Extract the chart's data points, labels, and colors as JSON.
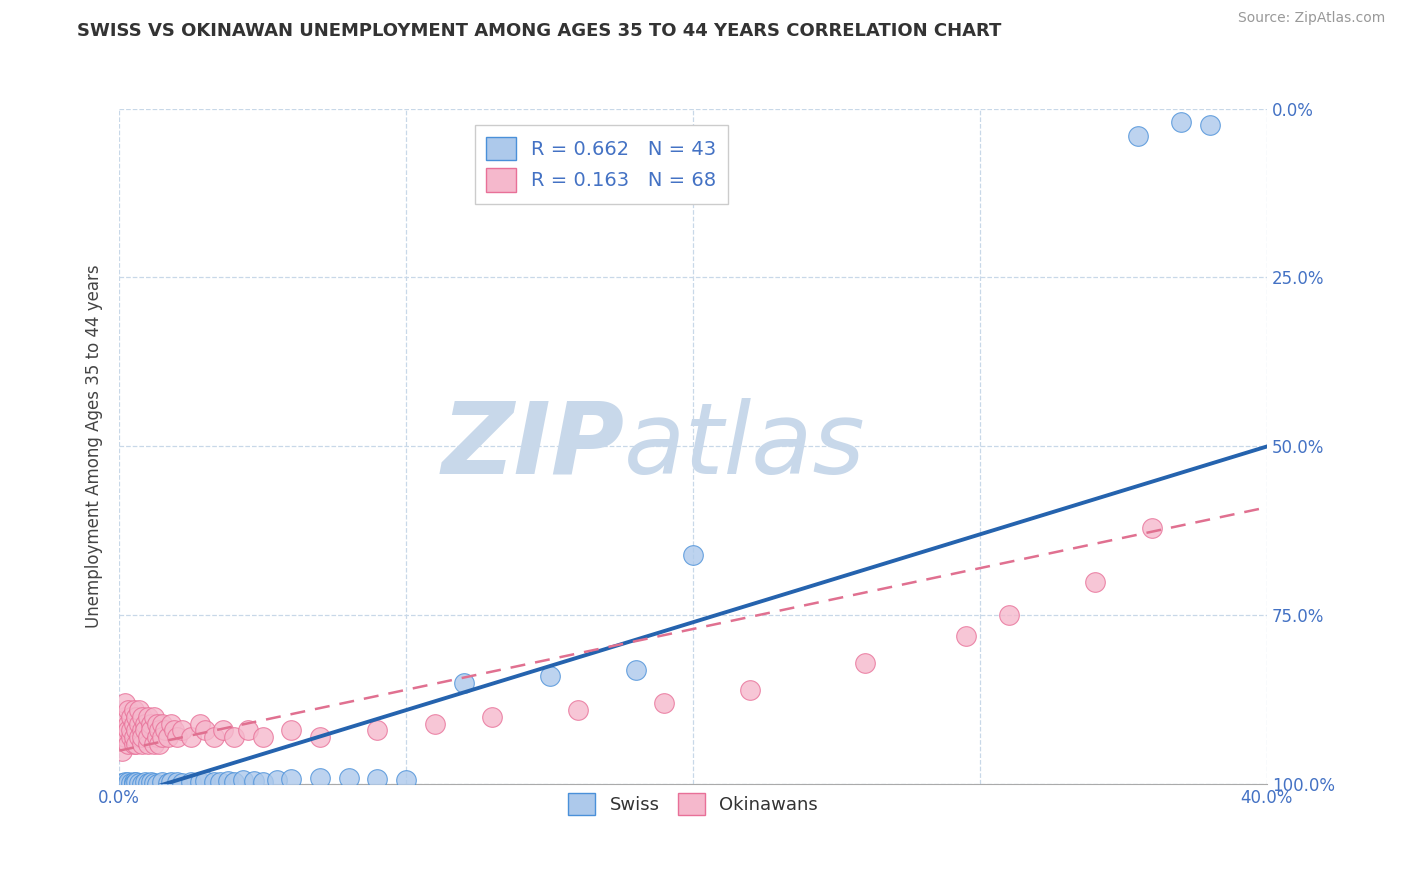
{
  "title": "SWISS VS OKINAWAN UNEMPLOYMENT AMONG AGES 35 TO 44 YEARS CORRELATION CHART",
  "source": "Source: ZipAtlas.com",
  "ylabel": "Unemployment Among Ages 35 to 44 years",
  "xlim": [
    0.0,
    0.4
  ],
  "ylim": [
    0.0,
    1.0
  ],
  "xticks": [
    0.0,
    0.1,
    0.2,
    0.3,
    0.4
  ],
  "yticks": [
    0.0,
    0.25,
    0.5,
    0.75,
    1.0
  ],
  "xticklabels": [
    "0.0%",
    "",
    "",
    "",
    "40.0%"
  ],
  "yticklabels_right": [
    "100.0%",
    "75.0%",
    "50.0%",
    "25.0%",
    "0.0%"
  ],
  "swiss_R": 0.662,
  "swiss_N": 43,
  "okinawan_R": 0.163,
  "okinawan_N": 68,
  "swiss_color": "#adc9eb",
  "swiss_edge_color": "#4a90d9",
  "swiss_line_color": "#2563ae",
  "okinawan_color": "#f5b8cc",
  "okinawan_edge_color": "#e87098",
  "okinawan_line_color": "#e07090",
  "watermark_zip": "ZIP",
  "watermark_atlas": "atlas",
  "watermark_color": "#c8d8ea",
  "legend_color": "#4472c4",
  "background_color": "#ffffff",
  "grid_color": "#c8d8e8",
  "swiss_line_intercept": -0.02,
  "swiss_line_slope": 1.3,
  "okin_line_intercept": 0.05,
  "okin_line_slope": 0.9,
  "swiss_x": [
    0.001,
    0.002,
    0.003,
    0.003,
    0.004,
    0.005,
    0.005,
    0.006,
    0.007,
    0.008,
    0.009,
    0.01,
    0.011,
    0.012,
    0.013,
    0.015,
    0.017,
    0.018,
    0.02,
    0.022,
    0.025,
    0.028,
    0.03,
    0.033,
    0.035,
    0.038,
    0.04,
    0.043,
    0.047,
    0.05,
    0.055,
    0.06,
    0.07,
    0.08,
    0.09,
    0.1,
    0.12,
    0.15,
    0.18,
    0.2,
    0.355,
    0.37,
    0.38
  ],
  "swiss_y": [
    0.002,
    0.003,
    0.001,
    0.004,
    0.002,
    0.003,
    0.001,
    0.004,
    0.002,
    0.001,
    0.003,
    0.002,
    0.004,
    0.002,
    0.001,
    0.003,
    0.002,
    0.004,
    0.003,
    0.002,
    0.004,
    0.003,
    0.005,
    0.004,
    0.003,
    0.005,
    0.004,
    0.006,
    0.005,
    0.003,
    0.007,
    0.008,
    0.01,
    0.01,
    0.008,
    0.007,
    0.15,
    0.16,
    0.17,
    0.34,
    0.96,
    0.98,
    0.975
  ],
  "okin_x": [
    0.001,
    0.001,
    0.002,
    0.002,
    0.002,
    0.003,
    0.003,
    0.003,
    0.003,
    0.004,
    0.004,
    0.004,
    0.005,
    0.005,
    0.005,
    0.005,
    0.006,
    0.006,
    0.006,
    0.007,
    0.007,
    0.007,
    0.008,
    0.008,
    0.008,
    0.008,
    0.009,
    0.009,
    0.01,
    0.01,
    0.01,
    0.011,
    0.011,
    0.012,
    0.012,
    0.013,
    0.013,
    0.014,
    0.014,
    0.015,
    0.015,
    0.016,
    0.017,
    0.018,
    0.019,
    0.02,
    0.022,
    0.025,
    0.028,
    0.03,
    0.033,
    0.036,
    0.04,
    0.045,
    0.05,
    0.06,
    0.07,
    0.09,
    0.11,
    0.13,
    0.16,
    0.19,
    0.22,
    0.26,
    0.295,
    0.31,
    0.34,
    0.36
  ],
  "okin_y": [
    0.05,
    0.08,
    0.1,
    0.07,
    0.12,
    0.06,
    0.09,
    0.11,
    0.08,
    0.07,
    0.1,
    0.08,
    0.06,
    0.09,
    0.11,
    0.07,
    0.08,
    0.1,
    0.06,
    0.09,
    0.07,
    0.11,
    0.08,
    0.06,
    0.1,
    0.07,
    0.09,
    0.08,
    0.06,
    0.1,
    0.07,
    0.09,
    0.08,
    0.06,
    0.1,
    0.07,
    0.09,
    0.08,
    0.06,
    0.09,
    0.07,
    0.08,
    0.07,
    0.09,
    0.08,
    0.07,
    0.08,
    0.07,
    0.09,
    0.08,
    0.07,
    0.08,
    0.07,
    0.08,
    0.07,
    0.08,
    0.07,
    0.08,
    0.09,
    0.1,
    0.11,
    0.12,
    0.14,
    0.18,
    0.22,
    0.25,
    0.3,
    0.38
  ]
}
